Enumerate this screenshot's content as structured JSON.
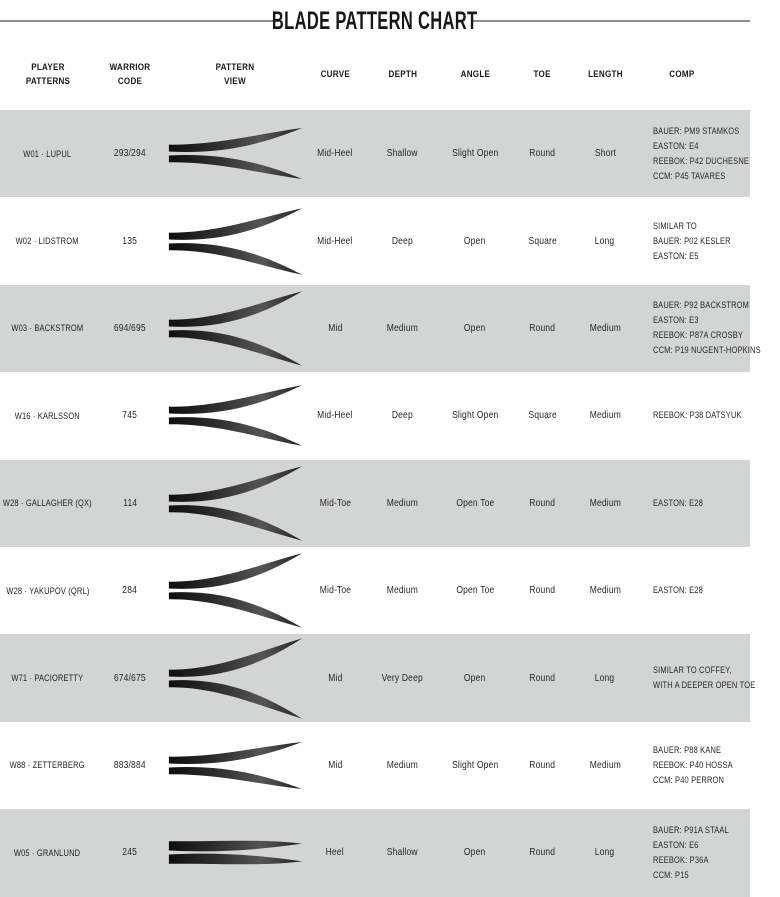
{
  "title": "BLADE PATTERN CHART",
  "colors": {
    "row_alt": "#d3d4d4",
    "text": "#262626",
    "title_rule": "#8e8e8e",
    "blade_dark": "#101010",
    "blade_mid": "#4e4e4e"
  },
  "chart_data": {
    "type": "table",
    "title": "BLADE PATTERN CHART",
    "columns": [
      "PLAYER PATTERNS",
      "WARRIOR CODE",
      "PATTERN VIEW",
      "CURVE",
      "DEPTH",
      "ANGLE",
      "TOE",
      "LENGTH",
      "COMP"
    ],
    "rows": [
      {
        "player": "W01 · LUPUL",
        "code": "293/294",
        "curve": "Mid-Heel",
        "depth": "Shallow",
        "angle": "Slight Open",
        "toe": "Round",
        "length": "Short",
        "comp": [
          "BAUER: PM9 STAMKOS",
          "EASTON: E4",
          "REEBOK: P42 DUCHESNE",
          "CCM: P45 TAVARES"
        ],
        "pattern_spread": 26
      },
      {
        "player": "W02 · LIDSTROM",
        "code": "135",
        "curve": "Mid-Heel",
        "depth": "Deep",
        "angle": "Open",
        "toe": "Square",
        "length": "Long",
        "comp": [
          "SIMILAR TO",
          "BAUER: P02 KESLER",
          "EASTON: E5"
        ],
        "pattern_spread": 34
      },
      {
        "player": "W03 · BACKSTROM",
        "code": "694/695",
        "curve": "Mid",
        "depth": "Medium",
        "angle": "Open",
        "toe": "Round",
        "length": "Medium",
        "comp": [
          "BAUER: P92 BACKSTROM",
          "EASTON: E3",
          "REEBOK: P87A CROSBY",
          "CCM: P19 NUGENT-HOPKINS"
        ],
        "pattern_spread": 38
      },
      {
        "player": "W16 · KARLSSON",
        "code": "745",
        "curve": "Mid-Heel",
        "depth": "Deep",
        "angle": "Slight Open",
        "toe": "Square",
        "length": "Medium",
        "comp": [
          "REEBOK: P38 DATSYUK"
        ],
        "pattern_spread": 31
      },
      {
        "player": "W28 · GALLAGHER (QX)",
        "code": "114",
        "curve": "Mid-Toe",
        "depth": "Medium",
        "angle": "Open Toe",
        "toe": "Round",
        "length": "Medium",
        "comp": [
          "EASTON: E28"
        ],
        "pattern_spread": 38
      },
      {
        "player": "W28 · YAKUPOV (QRL)",
        "code": "284",
        "curve": "Mid-Toe",
        "depth": "Medium",
        "angle": "Open Toe",
        "toe": "Round",
        "length": "Medium",
        "comp": [
          "EASTON: E28"
        ],
        "pattern_spread": 38
      },
      {
        "player": "W71 · PACIORETTY",
        "code": "674/675",
        "curve": "Mid",
        "depth": "Very Deep",
        "angle": "Open",
        "toe": "Round",
        "length": "Long",
        "comp": [
          "SIMILAR TO COFFEY,",
          "WITH A DEEPER OPEN TOE"
        ],
        "pattern_spread": 41
      },
      {
        "player": "W88 · ZETTERBERG",
        "code": "883/884",
        "curve": "Mid",
        "depth": "Medium",
        "angle": "Slight Open",
        "toe": "Round",
        "length": "Medium",
        "comp": [
          "BAUER: P88 KANE",
          "REEBOK: P40 HOSSA",
          "CCM: P40 PERRON"
        ],
        "pattern_spread": 24
      },
      {
        "player": "W05 · GRANLUND",
        "code": "245",
        "curve": "Heel",
        "depth": "Shallow",
        "angle": "Open",
        "toe": "Round",
        "length": "Long",
        "comp": [
          "BAUER: P91A STAAL",
          "EASTON: E6",
          "REEBOK: P36A",
          "CCM: P15"
        ],
        "pattern_spread": 9
      }
    ]
  }
}
